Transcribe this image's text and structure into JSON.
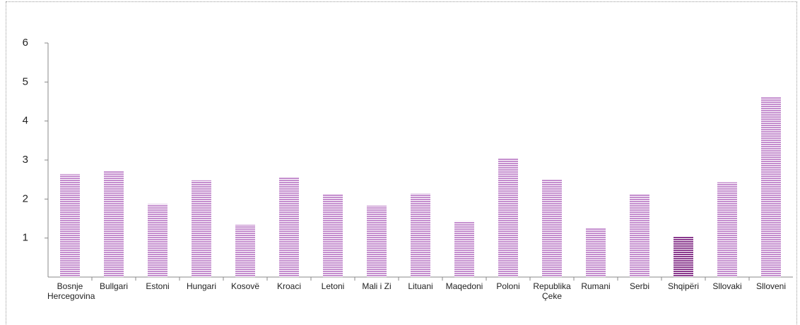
{
  "chart_data": {
    "type": "bar",
    "categories": [
      "Bosnje Hercegovina",
      "Bullgari",
      "Estoni",
      "Hungari",
      "Kosovë",
      "Kroaci",
      "Letoni",
      "Mali i Zi",
      "Lituani",
      "Maqedoni",
      "Poloni",
      "Republika Çeke",
      "Rumani",
      "Serbi",
      "Shqipëri",
      "Sllovaki",
      "Slloveni"
    ],
    "values": [
      2.64,
      2.72,
      1.87,
      2.48,
      1.34,
      2.55,
      2.12,
      1.83,
      2.14,
      1.43,
      3.04,
      2.5,
      1.25,
      2.12,
      1.04,
      2.43,
      4.61
    ],
    "colors": [
      "#c48dce",
      "#c48dce",
      "#c48dce",
      "#c48dce",
      "#c48dce",
      "#c48dce",
      "#c48dce",
      "#c48dce",
      "#c48dce",
      "#c48dce",
      "#c48dce",
      "#c48dce",
      "#c48dce",
      "#c48dce",
      "#8a3a8e",
      "#c48dce",
      "#c48dce"
    ],
    "ylim": [
      0,
      6
    ],
    "yticks": [
      1,
      2,
      3,
      4,
      5,
      6
    ]
  }
}
